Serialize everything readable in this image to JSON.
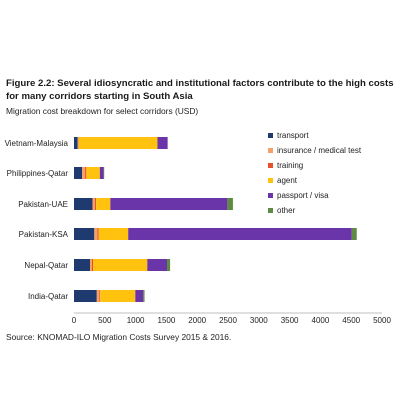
{
  "figure": {
    "title": "Figure 2.2: Several idiosyncratic and institutional factors contribute to the high costs for many corridors starting in South Asia",
    "subtitle": "Migration cost breakdown for select corridors (USD)",
    "source": "Source: KNOMAD-ILO Migration Costs Survey 2015 & 2016."
  },
  "chart_data": {
    "type": "bar",
    "orientation": "horizontal",
    "stacked": true,
    "categories": [
      "Vietnam-Malaysia",
      "Philippines-Qatar",
      "Pakistan-UAE",
      "Pakistan-KSA",
      "Nepal-Qatar",
      "India-Qatar"
    ],
    "series": [
      {
        "name": "transport",
        "color": "#1f3a6e",
        "values": [
          60,
          130,
          300,
          330,
          260,
          370
        ]
      },
      {
        "name": "insurance / medical test",
        "color": "#f4a06b",
        "values": [
          10,
          50,
          40,
          50,
          30,
          40
        ]
      },
      {
        "name": "training",
        "color": "#e8502a",
        "values": [
          5,
          20,
          20,
          20,
          20,
          15
        ]
      },
      {
        "name": "agent",
        "color": "#ffc20e",
        "values": [
          1280,
          220,
          230,
          480,
          880,
          570
        ]
      },
      {
        "name": "passport / visa",
        "color": "#6a35a8",
        "values": [
          165,
          60,
          1900,
          3630,
          320,
          130
        ]
      },
      {
        "name": "other",
        "color": "#5f8a43",
        "values": [
          0,
          10,
          90,
          80,
          50,
          20
        ]
      }
    ],
    "xlim": [
      0,
      5000
    ],
    "xticks": [
      "0",
      "500",
      "1000",
      "1500",
      "2000",
      "2500",
      "3000",
      "3500",
      "4000",
      "4500",
      "5000"
    ],
    "grid": false,
    "legend": "right"
  }
}
